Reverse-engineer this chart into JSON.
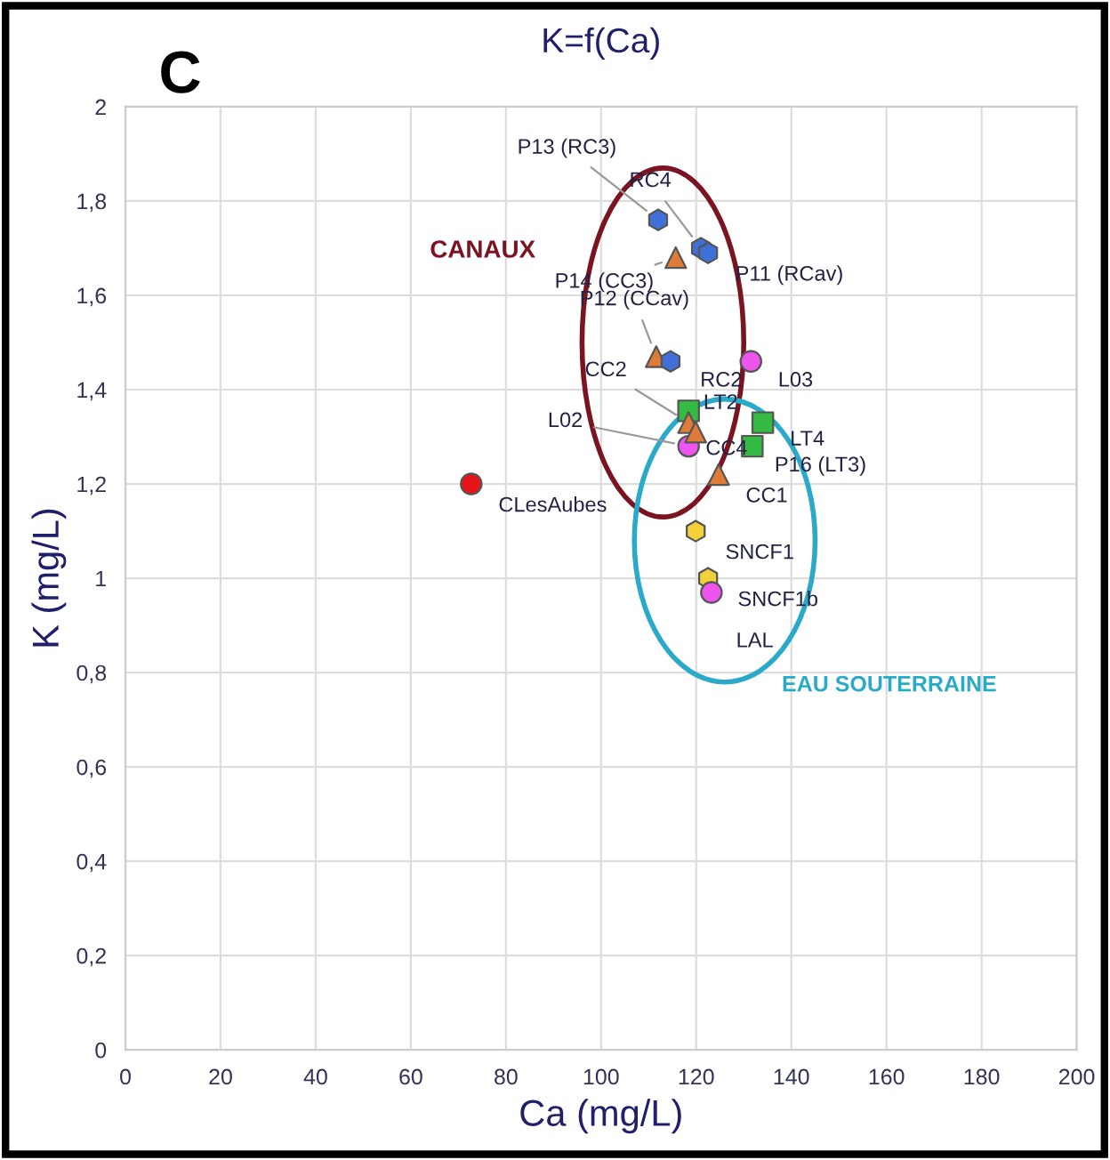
{
  "chart_data": {
    "type": "scatter",
    "title": "K=f(Ca)",
    "xlabel": "Ca (mg/L)",
    "ylabel": "K (mg/L)",
    "xlim": [
      0,
      200
    ],
    "xticks": [
      0,
      20,
      40,
      60,
      80,
      100,
      120,
      140,
      160,
      180,
      200
    ],
    "ylim": [
      0,
      2
    ],
    "yticks": [
      0,
      {
        "value": 0.2,
        "label": "0,2"
      },
      {
        "value": 0.4,
        "label": "0,4"
      },
      {
        "value": 0.6,
        "label": "0,6"
      },
      {
        "value": 0.8,
        "label": "0,8"
      },
      1,
      {
        "value": 1.2,
        "label": "1,2"
      },
      {
        "value": 1.4,
        "label": "1,4"
      },
      {
        "value": 1.6,
        "label": "1,6"
      },
      {
        "value": 1.8,
        "label": "1,8"
      },
      2
    ],
    "grid": true,
    "legend": false,
    "series": [
      {
        "color": "#3f6fd8",
        "x": [
          112,
          121,
          122.5,
          114.6
        ],
        "values": [
          1.76,
          1.7,
          1.69,
          1.46
        ]
      },
      {
        "color": "#e07b39",
        "marker": "triangle",
        "x": [
          115.7,
          111.6,
          118.4,
          119.9,
          124.7
        ],
        "values": [
          1.68,
          1.47,
          1.33,
          1.31,
          1.22
        ]
      },
      {
        "color": "#ee55ee",
        "marker": "circle",
        "x": [
          131.5,
          118.4,
          123.2
        ],
        "values": [
          1.46,
          1.28,
          0.97
        ]
      },
      {
        "color": "#33bb44",
        "marker": "square",
        "x": [
          118.4,
          134,
          131.8
        ],
        "values": [
          1.355,
          1.33,
          1.28
        ]
      },
      {
        "color": "#f2d13a",
        "x": [
          119.9,
          122.5
        ],
        "values": [
          1.1,
          1.0
        ]
      },
      {
        "color": "#e8141c",
        "marker": "circle",
        "x": [
          72.7
        ],
        "values": [
          1.2
        ]
      }
    ],
    "annotations": [
      "C",
      "CANAUX",
      "EAU SOUTERRAINE",
      {
        "text": "P13 (RC3)",
        "x": 112,
        "y": 1.76
      },
      {
        "text": "RC4",
        "x": 121,
        "y": 1.7
      },
      {
        "text": "P11 (RCav)",
        "x": 122.5,
        "y": 1.69
      },
      {
        "text": "P14 (CC3)",
        "x": 115.7,
        "y": 1.68
      },
      {
        "text": "P12 (CCav)",
        "x": 111.6,
        "y": 1.47
      },
      {
        "text": "RC2",
        "x": 114.6,
        "y": 1.46
      },
      {
        "text": "L03",
        "x": 131.5,
        "y": 1.46
      },
      {
        "text": "CC2",
        "x": 118.4,
        "y": 1.33
      },
      {
        "text": "LT2",
        "x": 118.4,
        "y": 1.355
      },
      {
        "text": "LT4",
        "x": 134,
        "y": 1.33
      },
      {
        "text": "L02",
        "x": 118.4,
        "y": 1.28
      },
      {
        "text": "CC4",
        "x": 119.9,
        "y": 1.31
      },
      {
        "text": "P16 (LT3)",
        "x": 131.8,
        "y": 1.28
      },
      {
        "text": "CC1",
        "x": 124.7,
        "y": 1.22
      },
      {
        "text": "CLesAubes",
        "x": 72.7,
        "y": 1.2
      },
      {
        "text": "SNCF1",
        "x": 119.9,
        "y": 1.1
      },
      {
        "text": "SNCF1b",
        "x": 122.5,
        "y": 1.0
      },
      {
        "text": "LAL",
        "x": 123.2,
        "y": 0.97
      }
    ]
  }
}
